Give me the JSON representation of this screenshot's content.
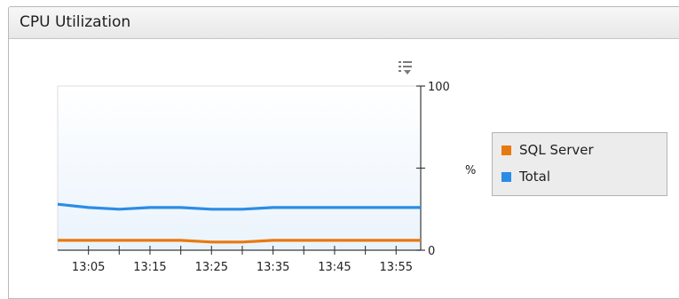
{
  "panel": {
    "title": "CPU Utilization",
    "options_icon": "chart-options-icon"
  },
  "colors": {
    "sql_server": "#e8790f",
    "total": "#2b8ce6",
    "plot_bg_top": "#ffffff",
    "plot_bg_bottom": "#eaf3fc"
  },
  "chart_data": {
    "type": "line",
    "x": [
      "13:00",
      "13:05",
      "13:10",
      "13:15",
      "13:20",
      "13:25",
      "13:30",
      "13:35",
      "13:40",
      "13:45",
      "13:50",
      "13:55",
      "13:59"
    ],
    "xtick_labels": [
      "13:05",
      "13:15",
      "13:25",
      "13:35",
      "13:45",
      "13:55"
    ],
    "ylabel": "%",
    "ylim": [
      0,
      100
    ],
    "ytick_labels": [
      "0",
      "100"
    ],
    "grid": false,
    "legend_position": "right",
    "series": [
      {
        "name": "SQL Server",
        "color": "#e8790f",
        "values": [
          6,
          6,
          6,
          6,
          6,
          5,
          5,
          6,
          6,
          6,
          6,
          6,
          6
        ]
      },
      {
        "name": "Total",
        "color": "#2b8ce6",
        "values": [
          28,
          26,
          25,
          26,
          26,
          25,
          25,
          26,
          26,
          26,
          26,
          26,
          26
        ]
      }
    ]
  }
}
